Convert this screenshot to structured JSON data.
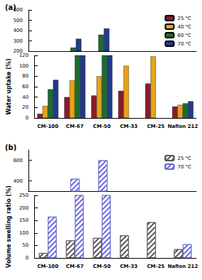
{
  "chart_data": [
    {
      "type": "bar",
      "title": "(a)",
      "y_label": "Water uptake (%)",
      "categories": [
        "CM-100",
        "CM-67",
        "CM-50",
        "CM-33",
        "CM-25",
        "Nafion 212"
      ],
      "series": [
        {
          "name": "25 °C",
          "color": "#8b1a2b",
          "values": [
            8,
            40,
            43,
            52,
            66,
            22
          ]
        },
        {
          "name": "40 °C",
          "color": "#e8a317",
          "values": [
            23,
            72,
            80,
            100,
            118,
            25
          ]
        },
        {
          "name": "60 °C",
          "color": "#1e6b2e",
          "values": [
            55,
            235,
            360,
            null,
            null,
            28
          ]
        },
        {
          "name": "70 °C",
          "color": "#1f3b8c",
          "values": [
            73,
            320,
            420,
            null,
            null,
            32
          ]
        }
      ],
      "ylim": [
        [
          0,
          120
        ],
        [
          200,
          600
        ]
      ],
      "yticks": [
        [
          0,
          20,
          40,
          60,
          80,
          100,
          120
        ],
        [
          200,
          300,
          400,
          500,
          600
        ]
      ],
      "grid": false,
      "legend": "upper right"
    },
    {
      "type": "bar",
      "title": "(b)",
      "y_label": "Volume swelling ratio (%)",
      "categories": [
        "CM-100",
        "CM-67",
        "CM-50",
        "CM-33",
        "CM-25",
        "Nafion 212"
      ],
      "series": [
        {
          "name": "25 °C",
          "color": "#555555",
          "values": [
            20,
            70,
            80,
            90,
            143,
            35
          ]
        },
        {
          "name": "70 °C",
          "color": "#6a6ad8",
          "values": [
            165,
            420,
            600,
            null,
            null,
            55
          ]
        }
      ],
      "ylim": [
        [
          0,
          250
        ],
        [
          300,
          700
        ]
      ],
      "yticks": [
        [
          0,
          50,
          100,
          150,
          200,
          250
        ],
        [
          400,
          600
        ]
      ],
      "grid": false,
      "legend": "upper right"
    }
  ]
}
